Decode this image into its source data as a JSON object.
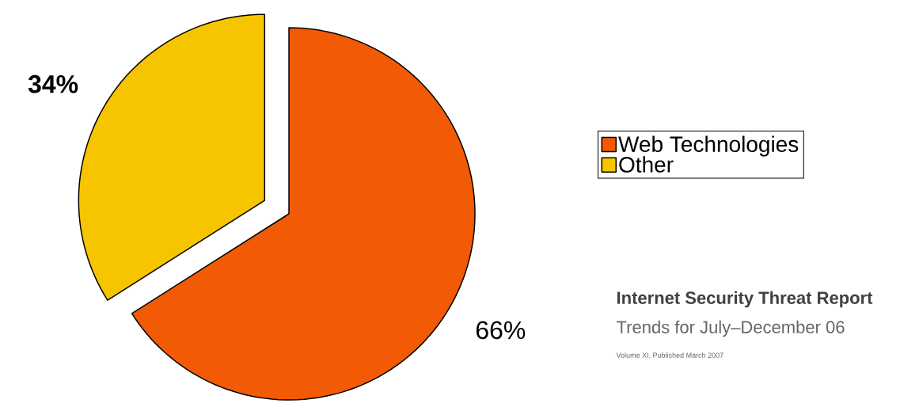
{
  "chart_data": {
    "type": "pie",
    "categories": [
      "Web Technologies",
      "Other"
    ],
    "values": [
      66,
      34
    ],
    "colors": [
      "#f25a05",
      "#f7c400"
    ],
    "value_labels": [
      "66%",
      "34%"
    ],
    "legend": "right",
    "annotations": [
      "Internet Security Threat Report",
      "Trends for July–December 06",
      "Volume XI, Published March 2007"
    ]
  }
}
